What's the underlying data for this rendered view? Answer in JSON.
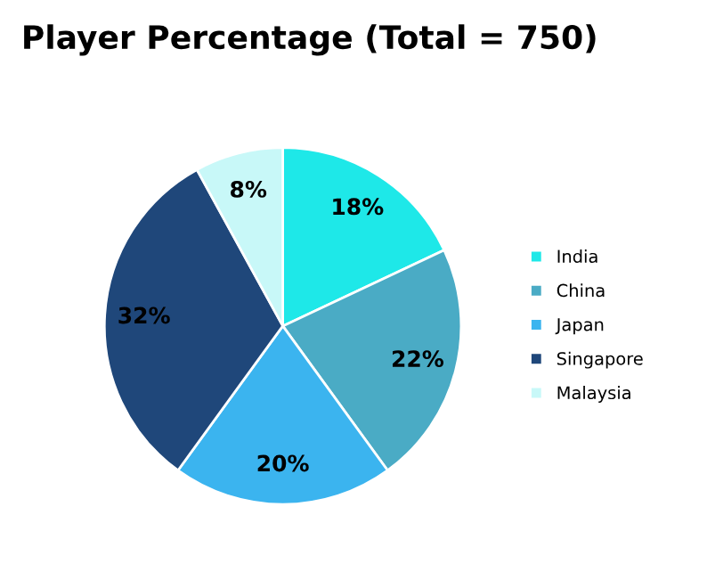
{
  "chart_data": {
    "type": "pie",
    "title": "Player Percentage (Total = 750)",
    "categories": [
      "India",
      "China",
      "Japan",
      "Singapore",
      "Malaysia"
    ],
    "values": [
      18,
      22,
      20,
      32,
      8
    ],
    "value_labels": [
      "18%",
      "22%",
      "20%",
      "32%",
      "8%"
    ],
    "colors": [
      "#1ee8e8",
      "#4aabc5",
      "#3bb4ef",
      "#1f477a",
      "#c8f8f8"
    ],
    "legend": "right"
  }
}
